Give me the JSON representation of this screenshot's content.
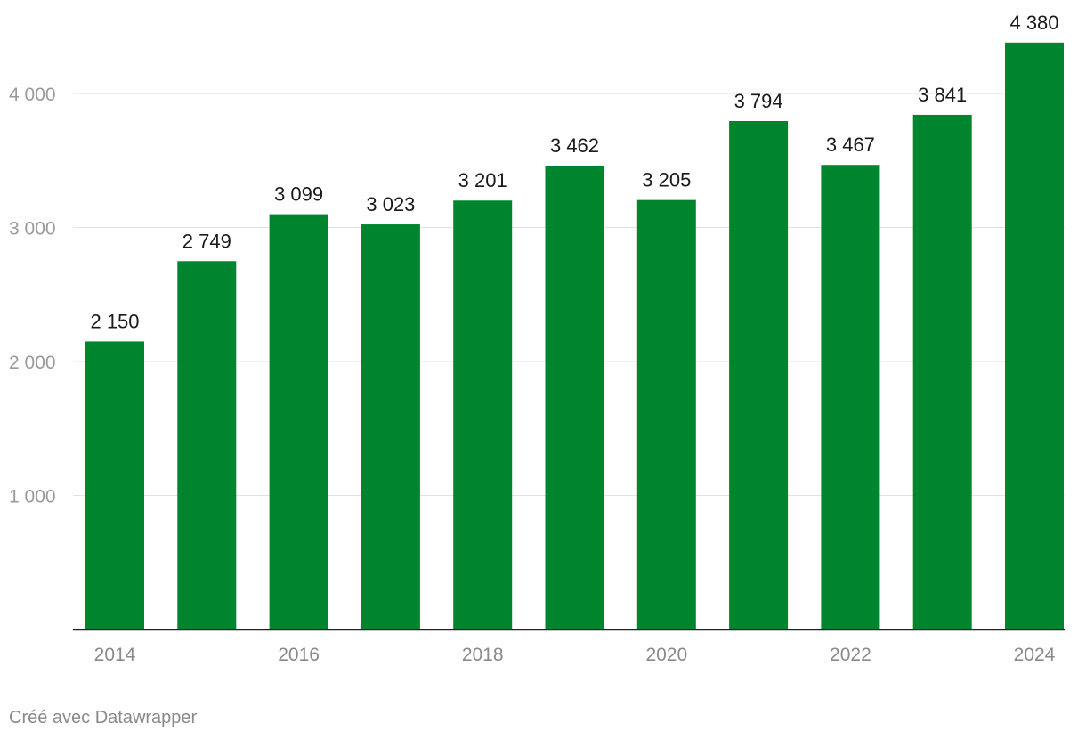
{
  "chart_data": {
    "type": "bar",
    "categories": [
      "2014",
      "2015",
      "2016",
      "2017",
      "2018",
      "2019",
      "2020",
      "2021",
      "2022",
      "2023",
      "2024"
    ],
    "values": [
      2150,
      2749,
      3099,
      3023,
      3201,
      3462,
      3205,
      3794,
      3467,
      3841,
      4380
    ],
    "value_labels": [
      "2 150",
      "2 749",
      "3 099",
      "3 023",
      "3 201",
      "3 462",
      "3 205",
      "3 794",
      "3 467",
      "3 841",
      "4 380"
    ],
    "x_tick_labels": [
      "2014",
      "",
      "2016",
      "",
      "2018",
      "",
      "2020",
      "",
      "2022",
      "",
      "2024"
    ],
    "y_ticks": [
      {
        "value": 1000,
        "label": "1 000"
      },
      {
        "value": 2000,
        "label": "2 000"
      },
      {
        "value": 3000,
        "label": "3 000"
      },
      {
        "value": 4000,
        "label": "4 000"
      }
    ],
    "ylim": [
      0,
      4380
    ],
    "grid": true,
    "bar_color": "#00852f",
    "title": "",
    "xlabel": "",
    "ylabel": ""
  },
  "footer": {
    "credit": "Créé avec Datawrapper"
  }
}
